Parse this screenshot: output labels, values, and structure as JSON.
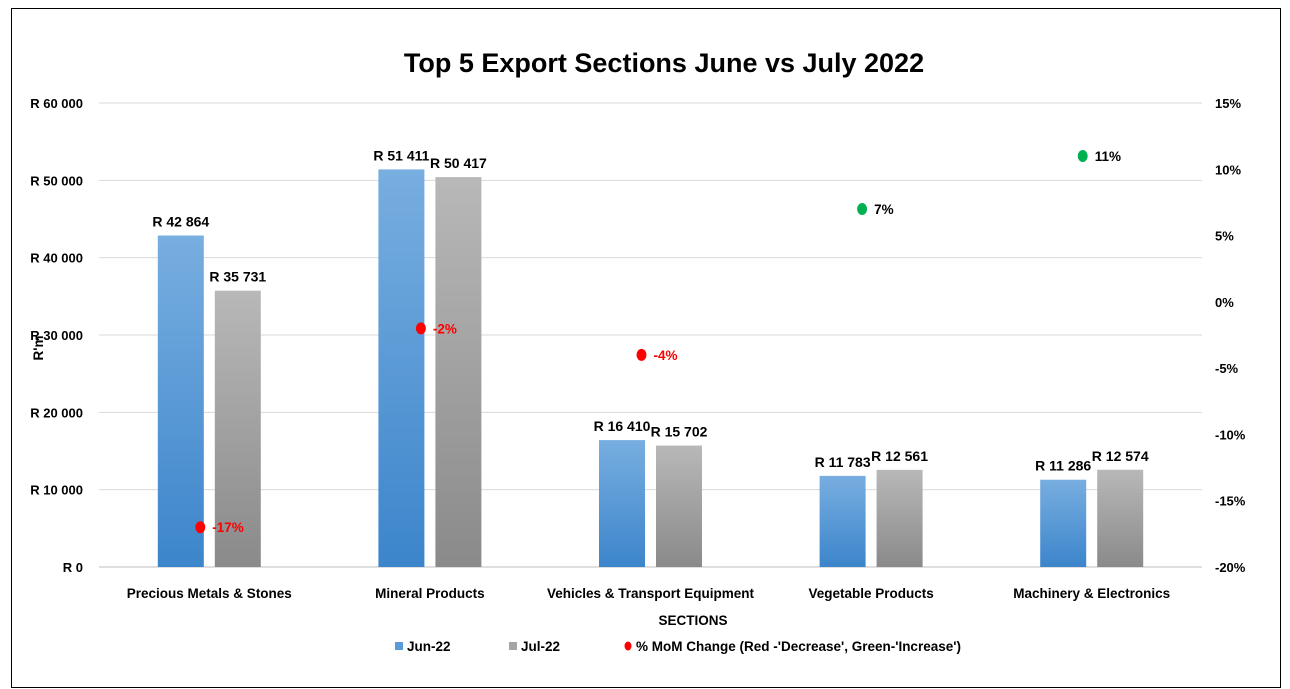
{
  "chart_data": {
    "type": "bar",
    "title": "Top 5 Export Sections  June vs July 2022",
    "xlabel": "SECTIONS",
    "ylabel": "R'm",
    "categories": [
      "Precious Metals & Stones",
      "Mineral Products",
      "Vehicles & Transport Equipment",
      "Vegetable Products",
      "Machinery & Electronics"
    ],
    "series": [
      {
        "name": "Jun-22",
        "values": [
          42864,
          51411,
          16410,
          11783,
          11286
        ],
        "labels": [
          "R 42 864",
          "R 51 411",
          "R 16 410",
          "R 11 783",
          "R 11 286"
        ],
        "color": "#5b9bd5"
      },
      {
        "name": "Jul-22",
        "values": [
          35731,
          50417,
          15702,
          12561,
          12574
        ],
        "labels": [
          "R 35 731",
          "R 50 417",
          "R 15 702",
          "R 12 561",
          "R 12 574"
        ],
        "color": "#a5a5a5"
      }
    ],
    "secondary_series": {
      "name": "% MoM Change (Red -'Decrease', Green-'Increase')",
      "values": [
        -17,
        -2,
        -4,
        7,
        11
      ],
      "labels": [
        "-17%",
        "-2%",
        "-4%",
        "7%",
        "11%"
      ],
      "colors": {
        "decrease": "#ff0000",
        "increase": "#00b050"
      }
    },
    "ylim": [
      0,
      60000
    ],
    "y_ticks": [
      0,
      10000,
      20000,
      30000,
      40000,
      50000,
      60000
    ],
    "y_tick_labels": [
      "R 0",
      "R 10 000",
      "R 20 000",
      "R 30 000",
      "R 40 000",
      "R 50 000",
      "R 60 000"
    ],
    "y2lim": [
      -20,
      15
    ],
    "y2_ticks": [
      -20,
      -15,
      -10,
      -5,
      0,
      5,
      10,
      15
    ],
    "y2_tick_labels": [
      "-20%",
      "-15%",
      "-10%",
      "-5%",
      "0%",
      "5%",
      "10%",
      "15%"
    ],
    "grid": true,
    "legend": "bottom"
  }
}
